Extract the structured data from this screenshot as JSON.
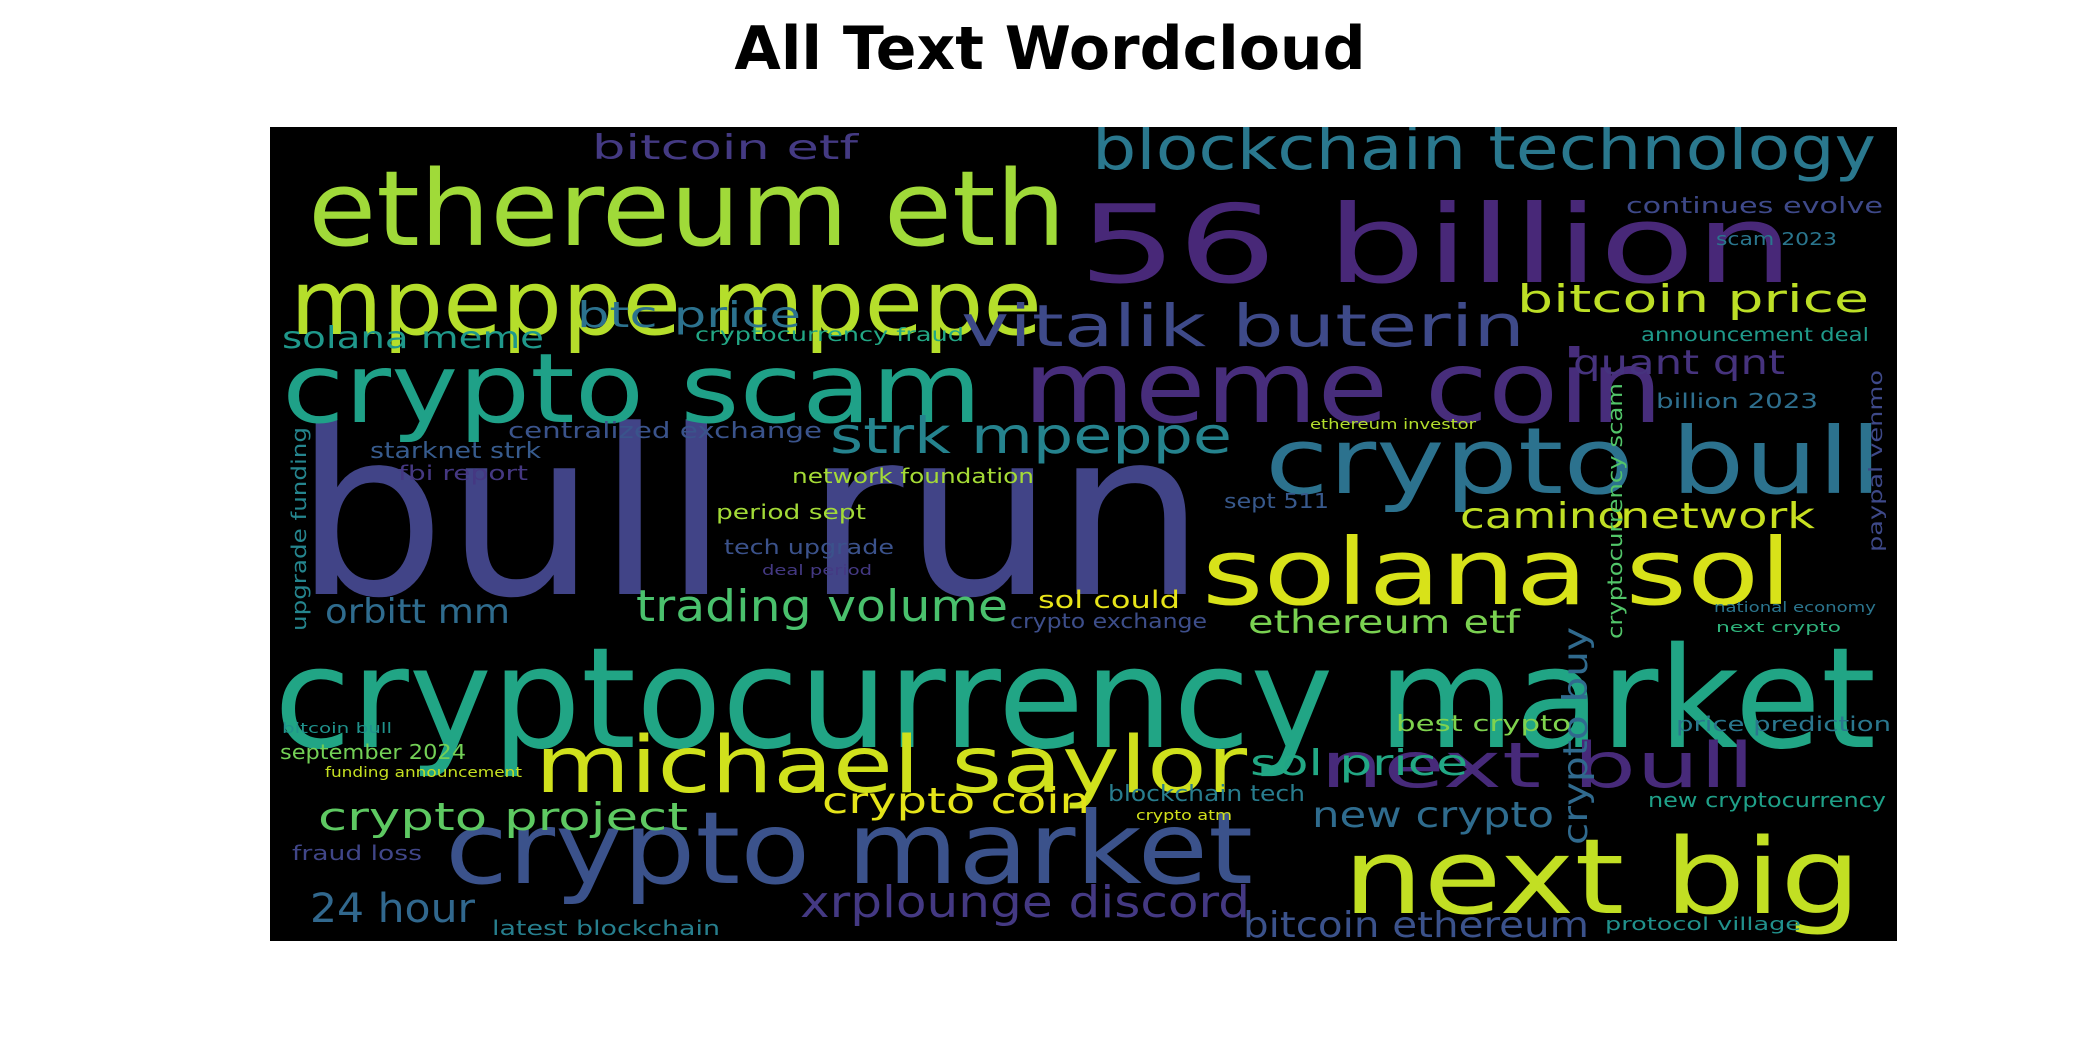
{
  "chart_data": {
    "type": "wordcloud",
    "title": "All Text Wordcloud",
    "background": "#000000",
    "colormap": "viridis",
    "words": [
      {
        "text": "bull run",
        "color": "#414487"
      },
      {
        "text": "cryptocurrency market",
        "color": "#21a585"
      },
      {
        "text": "56 billion",
        "color": "#482878"
      },
      {
        "text": "meme coin",
        "color": "#472d7b"
      },
      {
        "text": "crypto scam",
        "color": "#1fa188"
      },
      {
        "text": "ethereum eth",
        "color": "#a0da39"
      },
      {
        "text": "mpeppe mpepe",
        "color": "#b5de2b"
      },
      {
        "text": "crypto market",
        "color": "#3b528b"
      },
      {
        "text": "next big",
        "color": "#c2df23"
      },
      {
        "text": "solana sol",
        "color": "#d8e219"
      },
      {
        "text": "crypto bull",
        "color": "#2c728e"
      },
      {
        "text": "blockchain technology",
        "color": "#2a788e"
      },
      {
        "text": "michael saylor",
        "color": "#d0e11c"
      },
      {
        "text": "vitalik buterin",
        "color": "#3e4a89"
      },
      {
        "text": "strk mpeppe",
        "color": "#25838e"
      },
      {
        "text": "next bull",
        "color": "#472a7a"
      },
      {
        "text": "bitcoin price",
        "color": "#bddf26"
      },
      {
        "text": "trading volume",
        "color": "#4ac16d"
      },
      {
        "text": "ethereum etf",
        "color": "#7ad151"
      },
      {
        "text": "camino",
        "color": "#c0df25"
      },
      {
        "text": "network",
        "color": "#c8e020"
      },
      {
        "text": "crypto project",
        "color": "#5ec962"
      },
      {
        "text": "crypto coin",
        "color": "#e5e419"
      },
      {
        "text": "xrplounge discord",
        "color": "#443983"
      },
      {
        "text": "bitcoin ethereum",
        "color": "#3b528b"
      },
      {
        "text": "sol price",
        "color": "#22a884"
      },
      {
        "text": "new crypto",
        "color": "#2f6c8e"
      },
      {
        "text": "btc price",
        "color": "#2c728e"
      },
      {
        "text": "orbitt mm",
        "color": "#2f6c8e"
      },
      {
        "text": "24 hour",
        "color": "#31688e"
      },
      {
        "text": "solana meme",
        "color": "#1f988b"
      },
      {
        "text": "quant qnt",
        "color": "#46337e"
      },
      {
        "text": "bitcoin etf",
        "color": "#443a83"
      },
      {
        "text": "crypto buy",
        "color": "#306a8e"
      },
      {
        "text": "continues evolve",
        "color": "#3e4989"
      },
      {
        "text": "scam 2023",
        "color": "#2a768e"
      },
      {
        "text": "cryptocurrency fraud",
        "color": "#22a785"
      },
      {
        "text": "announcement deal",
        "color": "#1f9a8a"
      },
      {
        "text": "billion 2023",
        "color": "#2e6f8e"
      },
      {
        "text": "centralized exchange",
        "color": "#3a538b"
      },
      {
        "text": "ethereum investor",
        "color": "#b4de2c"
      },
      {
        "text": "starknet strk",
        "color": "#375b8d"
      },
      {
        "text": "fbi report",
        "color": "#453882"
      },
      {
        "text": "network foundation",
        "color": "#a5db36"
      },
      {
        "text": "upgrade funding",
        "color": "#25858e"
      },
      {
        "text": "cryptocurrency scam",
        "color": "#52c569"
      },
      {
        "text": "paypal venmo",
        "color": "#3e4989"
      },
      {
        "text": "period sept",
        "color": "#a2da37"
      },
      {
        "text": "sept 511",
        "color": "#38598c"
      },
      {
        "text": "tech upgrade",
        "color": "#3b528b"
      },
      {
        "text": "deal period",
        "color": "#443983"
      },
      {
        "text": "sol could",
        "color": "#e7e419"
      },
      {
        "text": "crypto exchange",
        "color": "#3d4e8a"
      },
      {
        "text": "national economy",
        "color": "#2b758e"
      },
      {
        "text": "next crypto",
        "color": "#2fb47c"
      },
      {
        "text": "best crypto",
        "color": "#7fd34e"
      },
      {
        "text": "price prediction",
        "color": "#2a778e"
      },
      {
        "text": "bitcoin bull",
        "color": "#20928c"
      },
      {
        "text": "september 2024",
        "color": "#73d056"
      },
      {
        "text": "funding announcement",
        "color": "#c5e021"
      },
      {
        "text": "blockchain tech",
        "color": "#287d8e"
      },
      {
        "text": "crypto atm",
        "color": "#d2e21b"
      },
      {
        "text": "new cryptocurrency",
        "color": "#1fa088"
      },
      {
        "text": "fraud loss",
        "color": "#404688"
      },
      {
        "text": "latest blockchain",
        "color": "#277f8e"
      },
      {
        "text": "protocol village",
        "color": "#21918c"
      }
    ]
  }
}
